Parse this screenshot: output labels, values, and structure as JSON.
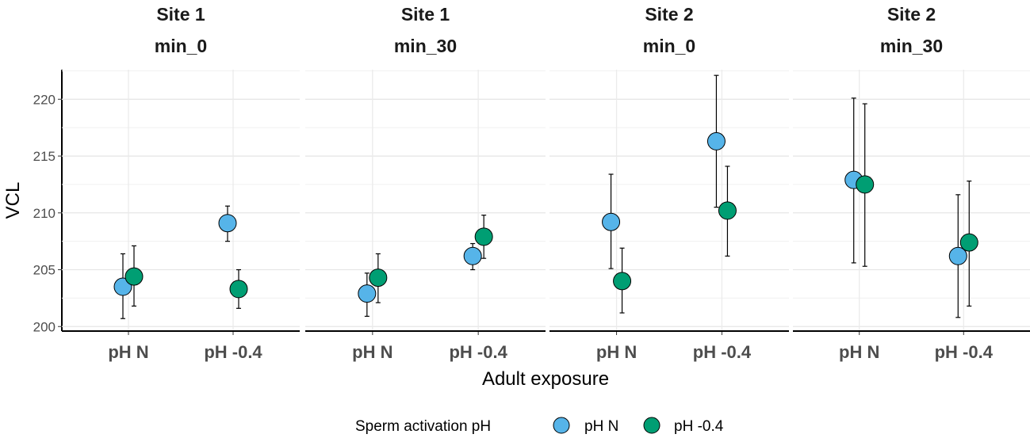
{
  "chart_data": {
    "type": "scatter",
    "title": "",
    "xlabel": "Adult exposure",
    "ylabel": "VCL",
    "ylim": [
      199.6,
      222.6
    ],
    "yticks": [
      200,
      205,
      210,
      215,
      220
    ],
    "categories": [
      "pH N",
      "pH -0.4"
    ],
    "grid": true,
    "legend": {
      "title": "Sperm activation pH",
      "position": "bottom",
      "entries": [
        {
          "name": "pH N",
          "color": "#56B4E9"
        },
        {
          "name": "pH -0.4",
          "color": "#009E73"
        }
      ]
    },
    "panels": [
      {
        "strip": [
          "Site 1",
          "min_0"
        ],
        "series": [
          {
            "name": "pH N",
            "values": [
              203.5,
              209.1
            ],
            "lower": [
              200.7,
              207.5
            ],
            "upper": [
              206.4,
              210.6
            ]
          },
          {
            "name": "pH -0.4",
            "values": [
              204.4,
              203.3
            ],
            "lower": [
              201.8,
              201.6
            ],
            "upper": [
              207.1,
              205.0
            ]
          }
        ]
      },
      {
        "strip": [
          "Site 1",
          "min_30"
        ],
        "series": [
          {
            "name": "pH N",
            "values": [
              202.9,
              206.2
            ],
            "lower": [
              200.9,
              205.0
            ],
            "upper": [
              204.7,
              207.3
            ]
          },
          {
            "name": "pH -0.4",
            "values": [
              204.3,
              207.9
            ],
            "lower": [
              202.1,
              206.0
            ],
            "upper": [
              206.4,
              209.8
            ]
          }
        ]
      },
      {
        "strip": [
          "Site 2",
          "min_0"
        ],
        "series": [
          {
            "name": "pH N",
            "values": [
              209.2,
              216.3
            ],
            "lower": [
              205.1,
              210.5
            ],
            "upper": [
              213.4,
              222.1
            ]
          },
          {
            "name": "pH -0.4",
            "values": [
              204.0,
              210.2
            ],
            "lower": [
              201.2,
              206.2
            ],
            "upper": [
              206.9,
              214.1
            ]
          }
        ]
      },
      {
        "strip": [
          "Site 2",
          "min_30"
        ],
        "series": [
          {
            "name": "pH N",
            "values": [
              212.9,
              206.2
            ],
            "lower": [
              205.6,
              200.8
            ],
            "upper": [
              220.1,
              211.6
            ]
          },
          {
            "name": "pH -0.4",
            "values": [
              212.5,
              207.4
            ],
            "lower": [
              205.3,
              201.8
            ],
            "upper": [
              219.6,
              212.8
            ]
          }
        ]
      }
    ]
  }
}
